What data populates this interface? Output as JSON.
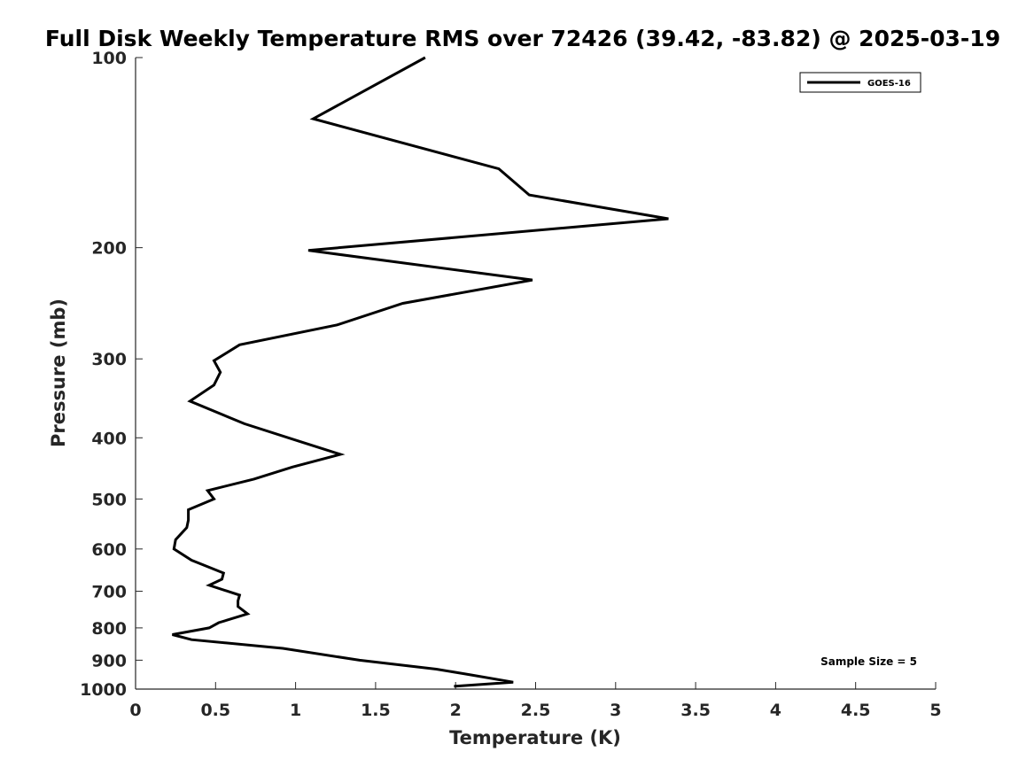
{
  "chart_data": {
    "type": "line",
    "title": "Full Disk Weekly Temperature RMS over 72426 (39.42, -83.82) @ 2025-03-19",
    "xlabel": "Temperature (K)",
    "ylabel": "Pressure (mb)",
    "xlim": [
      0,
      5
    ],
    "ylim": [
      100,
      1000
    ],
    "yscale": "log",
    "yreversed": true,
    "xticks": [
      0,
      0.5,
      1,
      1.5,
      2,
      2.5,
      3,
      3.5,
      4,
      4.5,
      5
    ],
    "xtick_labels": [
      "0",
      "0.5",
      "1",
      "1.5",
      "2",
      "2.5",
      "3",
      "3.5",
      "4",
      "4.5",
      "5"
    ],
    "yticks": [
      100,
      200,
      300,
      400,
      500,
      600,
      700,
      800,
      900,
      1000
    ],
    "ytick_labels": [
      "100",
      "200",
      "300",
      "400",
      "500",
      "600",
      "700",
      "800",
      "900",
      "1000"
    ],
    "grid": false,
    "legend_position": "top-right",
    "color": "#000000",
    "annotation": "Sample Size = 5",
    "series": [
      {
        "name": "GOES-16",
        "points": [
          [
            1.81,
            100
          ],
          [
            1.11,
            125
          ],
          [
            2.27,
            150
          ],
          [
            2.46,
            165
          ],
          [
            3.33,
            180
          ],
          [
            1.08,
            202
          ],
          [
            2.48,
            225
          ],
          [
            1.67,
            245
          ],
          [
            1.26,
            265
          ],
          [
            0.65,
            285
          ],
          [
            0.49,
            302
          ],
          [
            0.53,
            315
          ],
          [
            0.49,
            330
          ],
          [
            0.34,
            350
          ],
          [
            0.68,
            380
          ],
          [
            1.02,
            405
          ],
          [
            1.28,
            425
          ],
          [
            0.98,
            445
          ],
          [
            0.74,
            465
          ],
          [
            0.45,
            485
          ],
          [
            0.49,
            500
          ],
          [
            0.33,
            520
          ],
          [
            0.33,
            540
          ],
          [
            0.32,
            555
          ],
          [
            0.25,
            580
          ],
          [
            0.24,
            600
          ],
          [
            0.35,
            625
          ],
          [
            0.55,
            655
          ],
          [
            0.54,
            670
          ],
          [
            0.46,
            685
          ],
          [
            0.65,
            710
          ],
          [
            0.64,
            725
          ],
          [
            0.64,
            740
          ],
          [
            0.7,
            760
          ],
          [
            0.52,
            785
          ],
          [
            0.46,
            800
          ],
          [
            0.23,
            820
          ],
          [
            0.35,
            835
          ],
          [
            0.92,
            862
          ],
          [
            1.4,
            900
          ],
          [
            1.88,
            930
          ],
          [
            2.1,
            950
          ],
          [
            2.36,
            975
          ],
          [
            1.99,
            990
          ]
        ]
      }
    ]
  }
}
